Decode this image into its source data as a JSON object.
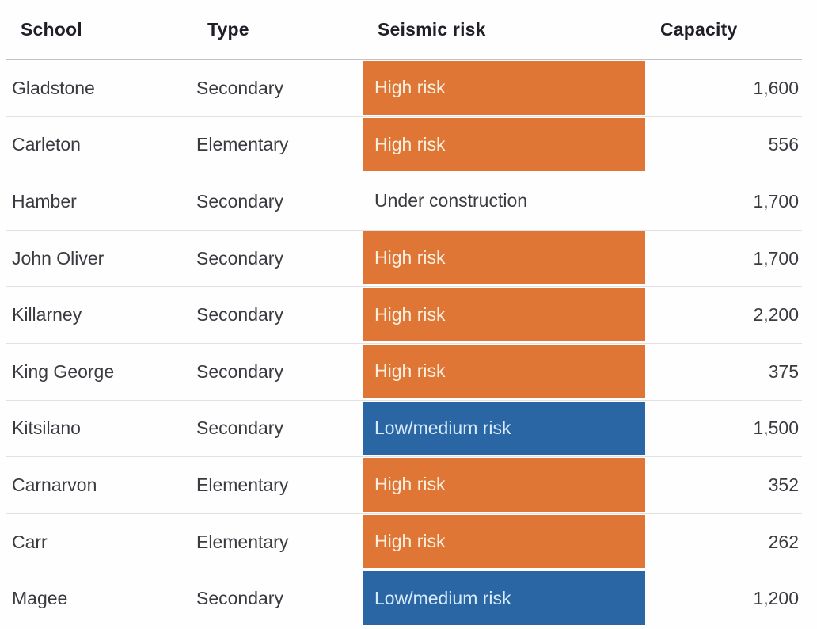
{
  "chart_data": {
    "type": "table",
    "title": "",
    "columns": [
      "School",
      "Type",
      "Seismic risk",
      "Capacity"
    ],
    "rows": [
      {
        "school": "Gladstone",
        "type": "Secondary",
        "seismic_risk": "High risk",
        "risk_level": "high",
        "capacity": "1,600"
      },
      {
        "school": "Carleton",
        "type": "Elementary",
        "seismic_risk": "High risk",
        "risk_level": "high",
        "capacity": "556"
      },
      {
        "school": "Hamber",
        "type": "Secondary",
        "seismic_risk": "Under construction",
        "risk_level": "none",
        "capacity": "1,700"
      },
      {
        "school": "John Oliver",
        "type": "Secondary",
        "seismic_risk": "High risk",
        "risk_level": "high",
        "capacity": "1,700"
      },
      {
        "school": "Killarney",
        "type": "Secondary",
        "seismic_risk": "High risk",
        "risk_level": "high",
        "capacity": "2,200"
      },
      {
        "school": "King George",
        "type": "Secondary",
        "seismic_risk": "High risk",
        "risk_level": "high",
        "capacity": "375"
      },
      {
        "school": "Kitsilano",
        "type": "Secondary",
        "seismic_risk": "Low/medium risk",
        "risk_level": "low_medium",
        "capacity": "1,500"
      },
      {
        "school": "Carnarvon",
        "type": "Elementary",
        "seismic_risk": "High risk",
        "risk_level": "high",
        "capacity": "352"
      },
      {
        "school": "Carr",
        "type": "Elementary",
        "seismic_risk": "High risk",
        "risk_level": "high",
        "capacity": "262"
      },
      {
        "school": "Magee",
        "type": "Secondary",
        "seismic_risk": "Low/medium risk",
        "risk_level": "low_medium",
        "capacity": "1,200"
      }
    ],
    "colors": {
      "high_risk_bg": "#df7635",
      "high_risk_text": "#f8efdf",
      "low_medium_bg": "#2a65a4",
      "low_medium_text": "#d8ebfa"
    },
    "layout": {
      "grid": "horizontal-row-dividers",
      "legend_position": "none"
    }
  }
}
